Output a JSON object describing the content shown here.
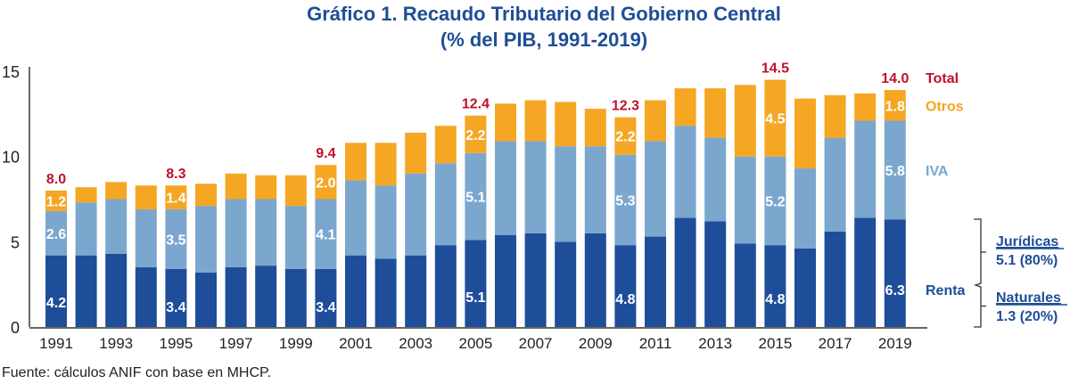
{
  "chart_data": {
    "type": "bar",
    "stacked": true,
    "title": "Gráfico 1. Recaudo Tributario del Gobierno Central",
    "subtitle": "(% del PIB, 1991-2019)",
    "xlabel": "",
    "ylabel": "",
    "ylim": [
      0,
      15
    ],
    "yticks": [
      0,
      5,
      10,
      15
    ],
    "grid": false,
    "categories": [
      "1991",
      "1992",
      "1993",
      "1994",
      "1995",
      "1996",
      "1997",
      "1998",
      "1999",
      "2000",
      "2001",
      "2002",
      "2003",
      "2004",
      "2005",
      "2006",
      "2007",
      "2008",
      "2009",
      "2010",
      "2011",
      "2012",
      "2013",
      "2014",
      "2015",
      "2016",
      "2017",
      "2018",
      "2019"
    ],
    "xtick_labels": [
      "1991",
      "1993",
      "1995",
      "1997",
      "1999",
      "2001",
      "2003",
      "2005",
      "2007",
      "2009",
      "2011",
      "2013",
      "2015",
      "2017",
      "2019"
    ],
    "series": [
      {
        "name": "Renta",
        "color": "#1E4D99",
        "values": [
          4.2,
          4.2,
          4.3,
          3.5,
          3.4,
          3.2,
          3.5,
          3.6,
          3.4,
          3.4,
          4.2,
          4.0,
          4.2,
          4.8,
          5.1,
          5.4,
          5.5,
          5.0,
          5.5,
          4.8,
          5.3,
          6.4,
          6.2,
          4.9,
          4.8,
          4.6,
          5.6,
          6.4,
          6.3
        ]
      },
      {
        "name": "IVA",
        "color": "#7BA7CE",
        "values": [
          2.6,
          3.1,
          3.2,
          3.4,
          3.5,
          3.9,
          4.0,
          3.9,
          3.7,
          4.1,
          4.4,
          4.3,
          4.8,
          4.8,
          5.1,
          5.5,
          5.4,
          5.6,
          5.1,
          5.3,
          5.6,
          5.4,
          4.9,
          5.1,
          5.2,
          4.7,
          5.5,
          5.7,
          5.8
        ]
      },
      {
        "name": "Otros",
        "color": "#F5A623",
        "values": [
          1.2,
          0.9,
          1.0,
          1.4,
          1.4,
          1.3,
          1.5,
          1.4,
          1.8,
          2.0,
          2.2,
          2.5,
          2.4,
          2.2,
          2.2,
          2.2,
          2.4,
          2.6,
          2.2,
          2.2,
          2.4,
          2.2,
          2.9,
          4.2,
          4.5,
          4.1,
          2.5,
          1.6,
          1.8
        ]
      }
    ],
    "labeled_years": [
      "1991",
      "1995",
      "2000",
      "2005",
      "2010",
      "2015",
      "2019"
    ],
    "segment_labels": {
      "1991": {
        "Renta": "4.2",
        "IVA": "2.6",
        "Otros": "1.2",
        "Total": "8.0"
      },
      "1995": {
        "Renta": "3.4",
        "IVA": "3.5",
        "Otros": "1.4",
        "Total": "8.3"
      },
      "2000": {
        "Renta": "3.4",
        "IVA": "4.1",
        "Otros": "2.0",
        "Total": "9.4"
      },
      "2005": {
        "Renta": "5.1",
        "IVA": "5.1",
        "Otros": "2.2",
        "Total": "12.4"
      },
      "2010": {
        "Renta": "4.8",
        "IVA": "5.3",
        "Otros": "2.2",
        "Total": "12.3"
      },
      "2015": {
        "Renta": "4.8",
        "IVA": "5.2",
        "Otros": "4.5",
        "Total": "14.5"
      },
      "2019": {
        "Renta": "6.3",
        "IVA": "5.8",
        "Otros": "1.8",
        "Total": "14.0"
      }
    },
    "total_color": "#C0102A",
    "legend": {
      "placement": "right",
      "entries": [
        {
          "label": "Total",
          "color": "#C0102A"
        },
        {
          "label": "Otros",
          "color": "#F5A623"
        },
        {
          "label": "IVA",
          "color": "#7BA7CE"
        },
        {
          "label": "Renta",
          "color": "#1E4D99"
        }
      ]
    },
    "annotations": {
      "renta_breakdown": [
        {
          "label": "Jurídicas",
          "value": "5.1 (80%)"
        },
        {
          "label": "Naturales",
          "value": "1.3 (20%)"
        }
      ]
    }
  },
  "source": "Fuente: cálculos ANIF con base en MHCP."
}
